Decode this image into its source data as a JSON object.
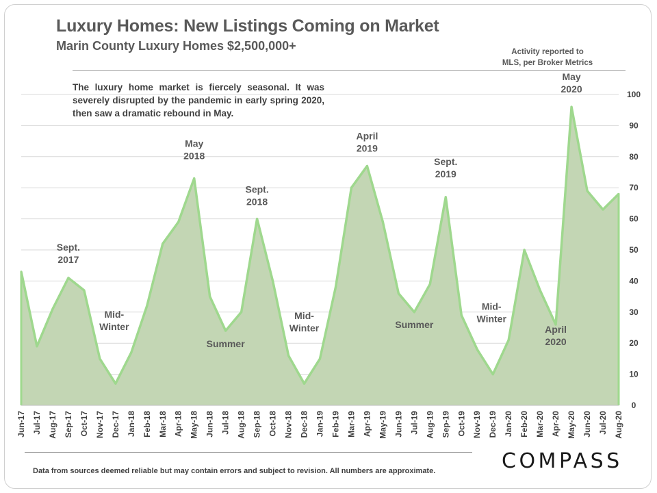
{
  "header": {
    "title": "Luxury Homes: New Listings Coming on Market",
    "subtitle": "Marin County Luxury Homes $2,500,000+",
    "source_note_line1": "Activity reported to",
    "source_note_line2": "MLS, per Broker Metrics"
  },
  "annotation_text": "The luxury home market is fiercely seasonal. It was severely disrupted by the pandemic in early spring 2020, then saw a dramatic rebound in May.",
  "footer": "Data from sources deemed reliable but may contain errors and subject to revision. All numbers are approximate.",
  "logo": "COMPASS",
  "colors": {
    "area_fill": "#c3d6b4",
    "line": "#9fd88e",
    "text": "#595959"
  },
  "chart_data": {
    "type": "area",
    "title": "Luxury Homes: New Listings Coming on Market",
    "categories": [
      "Jun-17",
      "Jul-17",
      "Aug-17",
      "Sep-17",
      "Oct-17",
      "Nov-17",
      "Dec-17",
      "Jan-18",
      "Feb-18",
      "Mar-18",
      "Apr-18",
      "May-18",
      "Jun-18",
      "Jul-18",
      "Aug-18",
      "Sep-18",
      "Oct-18",
      "Nov-18",
      "Dec-18",
      "Jan-19",
      "Feb-19",
      "Mar-19",
      "Apr-19",
      "May-19",
      "Jun-19",
      "Jul-19",
      "Aug-19",
      "Sep-19",
      "Oct-19",
      "Nov-19",
      "Dec-19",
      "Jan-20",
      "Feb-20",
      "Mar-20",
      "Apr-20",
      "May-20",
      "Jun-20",
      "Jul-20",
      "Aug-20"
    ],
    "series": [
      {
        "name": "New Listings",
        "values": [
          43,
          19,
          31,
          41,
          37,
          15,
          7,
          17,
          32,
          52,
          59,
          73,
          35,
          24,
          30,
          60,
          40,
          16,
          7,
          15,
          38,
          70,
          77,
          59,
          36,
          30,
          39,
          67,
          29,
          18,
          10,
          21,
          50,
          37,
          26,
          96,
          69,
          63,
          68
        ]
      }
    ],
    "y_axis": {
      "position": "right",
      "min": 0,
      "max": 100,
      "ticks": [
        0,
        10,
        20,
        30,
        40,
        50,
        60,
        70,
        80,
        90,
        100
      ]
    },
    "grid": "horizontal",
    "annotations": [
      {
        "category": "Sep-17",
        "value": 41,
        "lines": [
          "Sept.",
          "2017"
        ]
      },
      {
        "category": "Dec-17",
        "value": 7,
        "lines": [
          "Mid-",
          "Winter"
        ]
      },
      {
        "category": "May-18",
        "value": 73,
        "lines": [
          "May",
          "2018"
        ]
      },
      {
        "category": "Jul-18",
        "value": 24,
        "lines": [
          "Summer"
        ]
      },
      {
        "category": "Sep-18",
        "value": 60,
        "lines": [
          "Sept.",
          "2018"
        ]
      },
      {
        "category": "Dec-18",
        "value": 7,
        "lines": [
          "Mid-",
          "Winter"
        ]
      },
      {
        "category": "Apr-19",
        "value": 77,
        "lines": [
          "April",
          "2019"
        ]
      },
      {
        "category": "Jul-19",
        "value": 30,
        "lines": [
          "Summer"
        ]
      },
      {
        "category": "Sep-19",
        "value": 67,
        "lines": [
          "Sept.",
          "2019"
        ]
      },
      {
        "category": "Dec-19",
        "value": 10,
        "lines": [
          "Mid-",
          "Winter"
        ]
      },
      {
        "category": "Apr-20",
        "value": 26,
        "lines": [
          "April",
          "2020"
        ]
      },
      {
        "category": "May-20",
        "value": 96,
        "lines": [
          "May",
          "2020"
        ]
      }
    ]
  }
}
